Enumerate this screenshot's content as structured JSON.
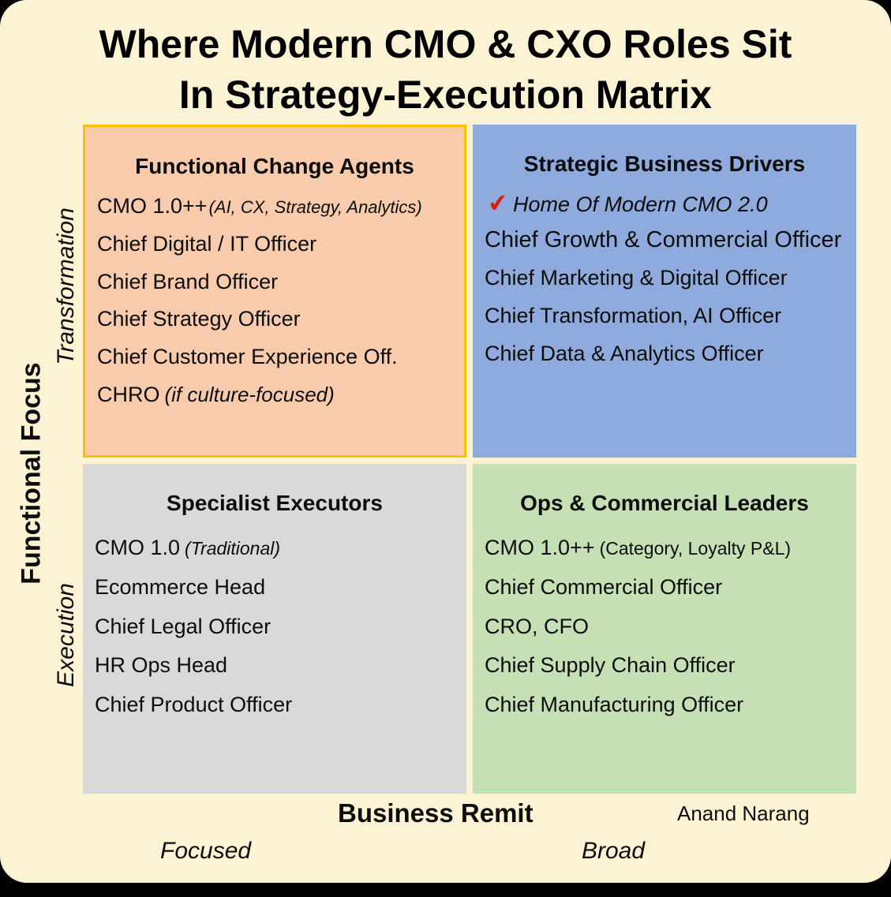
{
  "title": {
    "line1": "Where Modern CMO & CXO Roles Sit",
    "line2": "In Strategy-Execution Matrix"
  },
  "axes": {
    "y_label": "Functional Focus",
    "y_top": "Transformation",
    "y_bottom": "Execution",
    "x_label": "Business Remit",
    "x_left": "Focused",
    "x_right": "Broad"
  },
  "attribution": "Anand Narang",
  "colors": {
    "background": "#FCF3D4",
    "quad_top_left_bg": "#F8CBAD",
    "quad_top_left_border": "#FFC000",
    "quad_top_right_bg": "#8FAADC",
    "quad_bottom_left_bg": "#D9D9D9",
    "quad_bottom_right_bg": "#C5E0B4",
    "checkmark": "#D91F11"
  },
  "quadrants": {
    "top_left": {
      "title": "Functional Change Agents",
      "items": [
        {
          "text": "CMO 1.0++",
          "note": "(AI, CX, Strategy, Analytics)"
        },
        {
          "text": "Chief Digital / IT Officer"
        },
        {
          "text": "Chief Brand Officer"
        },
        {
          "text": "Chief Strategy Officer"
        },
        {
          "text": "Chief Customer Experience Off."
        },
        {
          "text": "CHRO",
          "note": "(if culture-focused)"
        }
      ]
    },
    "top_right": {
      "title": "Strategic Business Drivers",
      "highlight": {
        "icon": "✔",
        "text": "Home Of Modern CMO 2.0"
      },
      "items": [
        {
          "text": "Chief Growth & Commercial Officer"
        },
        {
          "text": "Chief Marketing & Digital Officer"
        },
        {
          "text": "Chief Transformation, AI Officer"
        },
        {
          "text": "Chief Data & Analytics Officer"
        }
      ]
    },
    "bottom_left": {
      "title": "Specialist Executors",
      "items": [
        {
          "text": "CMO 1.0",
          "note": "(Traditional)"
        },
        {
          "text": "Ecommerce Head"
        },
        {
          "text": "Chief Legal Officer"
        },
        {
          "text": "HR Ops Head"
        },
        {
          "text": "Chief Product Officer"
        }
      ]
    },
    "bottom_right": {
      "title": "Ops & Commercial Leaders",
      "items": [
        {
          "text": "CMO 1.0++",
          "note": "(Category, Loyalty P&L)"
        },
        {
          "text": "Chief Commercial Officer"
        },
        {
          "text": "CRO, CFO"
        },
        {
          "text": "Chief Supply Chain Officer"
        },
        {
          "text": "Chief Manufacturing Officer"
        }
      ]
    }
  }
}
